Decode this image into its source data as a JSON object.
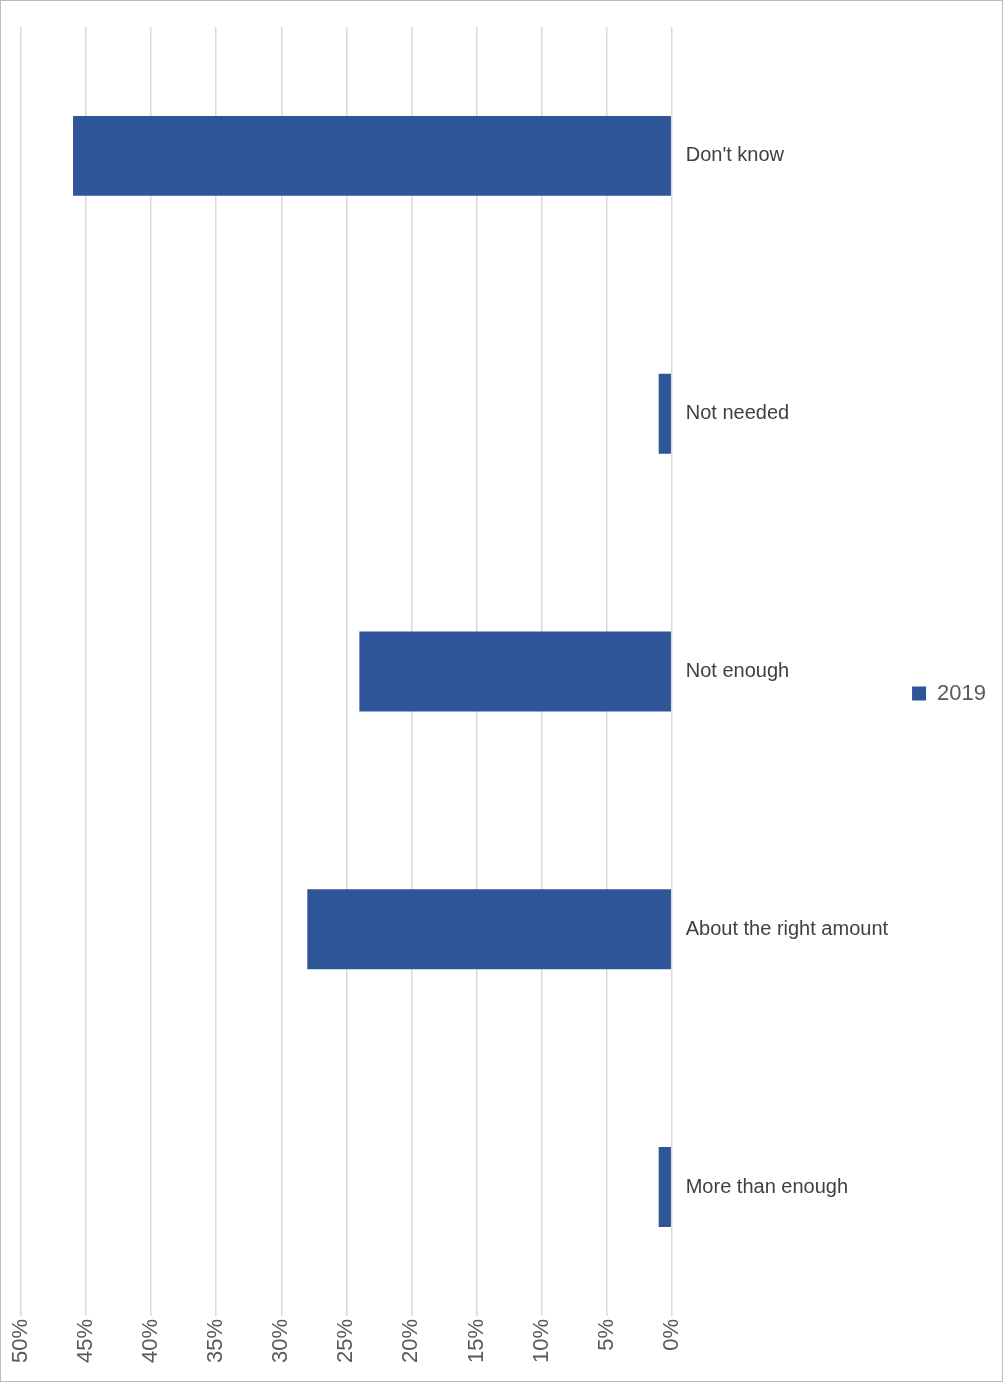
{
  "chart_data": {
    "type": "bar",
    "orientation": "horizontal",
    "categories": [
      "Don't know",
      "Not needed",
      "Not enough",
      "About the right amount",
      "More than enough"
    ],
    "series": [
      {
        "name": "2019",
        "color": "#2e5597",
        "values": [
          46,
          1,
          24,
          28,
          1
        ]
      }
    ],
    "xlim": [
      50,
      0
    ],
    "xticks": [
      {
        "value": 50,
        "label": "50%"
      },
      {
        "value": 45,
        "label": "45%"
      },
      {
        "value": 40,
        "label": "40%"
      },
      {
        "value": 35,
        "label": "35%"
      },
      {
        "value": 30,
        "label": "30%"
      },
      {
        "value": 25,
        "label": "25%"
      },
      {
        "value": 20,
        "label": "20%"
      },
      {
        "value": 15,
        "label": "15%"
      },
      {
        "value": 10,
        "label": "10%"
      },
      {
        "value": 5,
        "label": "5%"
      },
      {
        "value": 0,
        "label": "0%"
      }
    ],
    "grid": "x",
    "legend": "right"
  }
}
